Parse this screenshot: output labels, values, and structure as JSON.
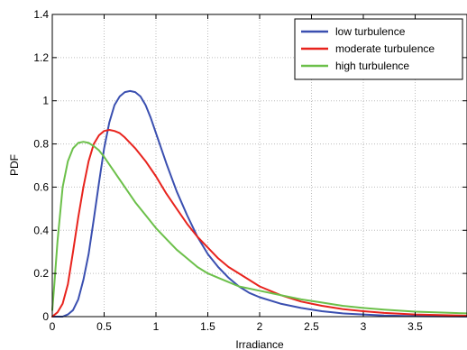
{
  "chart_data": {
    "type": "line",
    "title": "",
    "xlabel": "Irradiance",
    "ylabel": "PDF",
    "xlim": [
      0,
      4
    ],
    "ylim": [
      0,
      1.4
    ],
    "xticks": [
      0,
      0.5,
      1,
      1.5,
      2,
      2.5,
      3,
      3.5
    ],
    "xtick_labels": [
      "0",
      "0.5",
      "1",
      "1.5",
      "2",
      "2.5",
      "3",
      "3.5"
    ],
    "yticks": [
      0,
      0.2,
      0.4,
      0.6,
      0.8,
      1,
      1.2,
      1.4
    ],
    "ytick_labels": [
      "0",
      "0.2",
      "0.4",
      "0.6",
      "0.8",
      "1",
      "1.2",
      "1.4"
    ],
    "grid": true,
    "legend_position": "top-right",
    "series": [
      {
        "name": "low turbulence",
        "color": "#3a4fb0",
        "x": [
          0,
          0.1,
          0.15,
          0.2,
          0.25,
          0.3,
          0.35,
          0.4,
          0.45,
          0.5,
          0.55,
          0.6,
          0.65,
          0.7,
          0.75,
          0.8,
          0.85,
          0.9,
          0.95,
          1.0,
          1.1,
          1.2,
          1.3,
          1.4,
          1.5,
          1.6,
          1.7,
          1.8,
          1.9,
          2.0,
          2.2,
          2.4,
          2.6,
          2.8,
          3.0,
          3.2,
          3.5,
          4.0
        ],
        "y": [
          0,
          0.0,
          0.01,
          0.03,
          0.08,
          0.17,
          0.29,
          0.45,
          0.62,
          0.78,
          0.9,
          0.98,
          1.02,
          1.04,
          1.045,
          1.04,
          1.02,
          0.98,
          0.92,
          0.85,
          0.71,
          0.58,
          0.47,
          0.37,
          0.29,
          0.23,
          0.18,
          0.14,
          0.11,
          0.09,
          0.06,
          0.04,
          0.025,
          0.015,
          0.01,
          0.005,
          0.002,
          0.0
        ]
      },
      {
        "name": "moderate turbulence",
        "color": "#e8231d",
        "x": [
          0,
          0.05,
          0.1,
          0.15,
          0.2,
          0.25,
          0.3,
          0.35,
          0.4,
          0.45,
          0.5,
          0.55,
          0.6,
          0.65,
          0.7,
          0.8,
          0.9,
          1.0,
          1.1,
          1.2,
          1.3,
          1.4,
          1.5,
          1.6,
          1.7,
          1.8,
          2.0,
          2.2,
          2.4,
          2.6,
          2.8,
          3.0,
          3.2,
          3.5,
          4.0
        ],
        "y": [
          0,
          0.02,
          0.06,
          0.15,
          0.3,
          0.46,
          0.6,
          0.72,
          0.8,
          0.84,
          0.86,
          0.865,
          0.86,
          0.85,
          0.83,
          0.78,
          0.72,
          0.65,
          0.57,
          0.5,
          0.43,
          0.37,
          0.32,
          0.27,
          0.23,
          0.2,
          0.14,
          0.1,
          0.07,
          0.05,
          0.035,
          0.025,
          0.017,
          0.01,
          0.004
        ]
      },
      {
        "name": "high turbulence",
        "color": "#6cc04a",
        "x": [
          0,
          0.02,
          0.05,
          0.1,
          0.15,
          0.2,
          0.25,
          0.3,
          0.35,
          0.4,
          0.45,
          0.5,
          0.6,
          0.7,
          0.8,
          0.9,
          1.0,
          1.1,
          1.2,
          1.3,
          1.4,
          1.5,
          1.6,
          1.7,
          1.8,
          2.0,
          2.2,
          2.4,
          2.6,
          2.8,
          3.0,
          3.2,
          3.5,
          4.0
        ],
        "y": [
          0.03,
          0.15,
          0.35,
          0.6,
          0.72,
          0.78,
          0.805,
          0.81,
          0.805,
          0.79,
          0.77,
          0.74,
          0.67,
          0.6,
          0.53,
          0.47,
          0.41,
          0.36,
          0.31,
          0.27,
          0.23,
          0.2,
          0.18,
          0.16,
          0.14,
          0.12,
          0.1,
          0.08,
          0.065,
          0.05,
          0.04,
          0.032,
          0.023,
          0.015
        ]
      }
    ]
  }
}
